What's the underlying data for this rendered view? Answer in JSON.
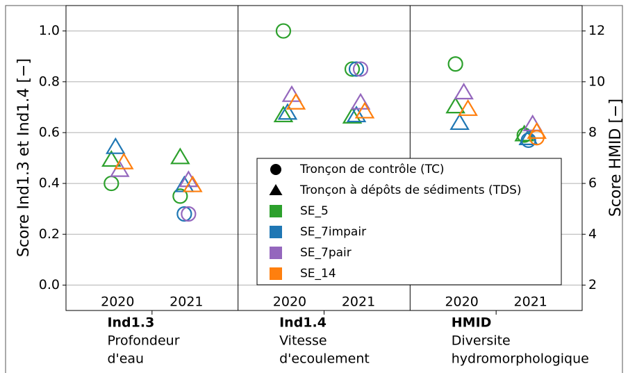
{
  "chart_data": {
    "type": "scatter",
    "ylabel": "Score Ind1.3 et Ind1.4 [−]",
    "y2label": "Score HMID [−]",
    "ylim": [
      -0.1,
      1.1
    ],
    "yticks": [
      {
        "value": 0,
        "label": "0.0"
      },
      0.2,
      0.4,
      0.6,
      0.8,
      {
        "value": 1,
        "label": "1.0"
      }
    ],
    "y2lim": [
      1,
      13
    ],
    "y2ticks": [
      2,
      4,
      6,
      8,
      10,
      12
    ],
    "grid": true,
    "groups": [
      {
        "name": "Ind1.3",
        "subtitle": [
          "Profondeur",
          "d'eau"
        ],
        "years": [
          "2020",
          "2021"
        ],
        "axis": "y"
      },
      {
        "name": "Ind1.4",
        "subtitle": [
          "Vitesse",
          "d'ecoulement"
        ],
        "years": [
          "2020",
          "2021"
        ],
        "axis": "y"
      },
      {
        "name": "HMID",
        "subtitle": [
          "Diversite",
          "hydromorphologique"
        ],
        "years": [
          "2020",
          "2021"
        ],
        "axis": "y2"
      }
    ],
    "markers": {
      "TC": "Tronçon de contrôle (TC)",
      "TDS": "Tronçon à dépôts de sédiments (TDS)"
    },
    "series": [
      {
        "name": "SE_5",
        "color": "#2ca02c",
        "TC": [
          0.4,
          0.35,
          1.0,
          0.85,
          10.7,
          7.9
        ],
        "TDS": [
          0.49,
          0.5,
          0.665,
          0.66,
          9.0,
          7.9
        ]
      },
      {
        "name": "SE_7impair",
        "color": "#1f77b4",
        "TC": [
          null,
          0.28,
          null,
          0.85,
          null,
          7.7
        ],
        "TDS": [
          0.54,
          0.39,
          0.675,
          0.665,
          8.35,
          7.75
        ]
      },
      {
        "name": "SE_7pair",
        "color": "#9467bd",
        "TC": [
          null,
          0.28,
          null,
          0.85,
          null,
          null
        ],
        "TDS": [
          0.45,
          0.41,
          0.745,
          0.715,
          9.55,
          8.3
        ]
      },
      {
        "name": "SE_14",
        "color": "#ff7f0e",
        "TC": [
          null,
          null,
          null,
          null,
          null,
          7.8
        ],
        "TDS": [
          0.48,
          0.39,
          0.715,
          0.68,
          8.9,
          8.0
        ]
      }
    ]
  }
}
